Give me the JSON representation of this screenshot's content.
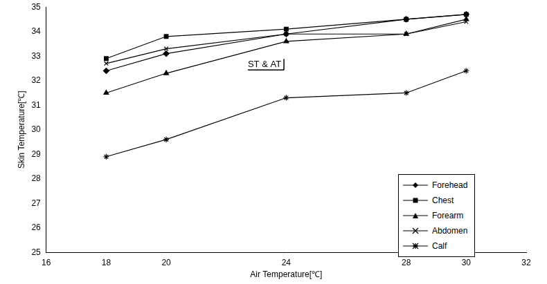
{
  "chart_data": {
    "type": "line",
    "annotation": "ST & AT",
    "x_label": "Air Temperature[℃]",
    "y_label": "Skin Temperature[℃]",
    "x": [
      18,
      20,
      24,
      28,
      30
    ],
    "series": [
      {
        "name": "Forehead",
        "color": "#000000",
        "marker": "diamond",
        "values": [
          32.4,
          33.1,
          33.9,
          34.5,
          34.7
        ]
      },
      {
        "name": "Chest",
        "color": "#000000",
        "marker": "square",
        "values": [
          32.9,
          33.8,
          34.1,
          34.5,
          34.7
        ]
      },
      {
        "name": "Forearm",
        "color": "#000000",
        "marker": "triangle",
        "values": [
          31.5,
          32.3,
          33.6,
          33.9,
          34.5
        ]
      },
      {
        "name": "Abdomen",
        "color": "#000000",
        "marker": "x",
        "values": [
          32.7,
          33.3,
          33.9,
          33.9,
          34.4
        ]
      },
      {
        "name": "Calf",
        "color": "#000000",
        "marker": "star",
        "values": [
          28.9,
          29.6,
          31.3,
          31.5,
          32.4
        ]
      }
    ],
    "xlim": [
      16,
      32
    ],
    "xticks": [
      16,
      18,
      20,
      24,
      28,
      30,
      32
    ],
    "ylim": [
      25,
      35
    ],
    "yticks": [
      25,
      26,
      27,
      28,
      29,
      30,
      31,
      32,
      33,
      34,
      35
    ],
    "grid": false,
    "legend": "lower right"
  }
}
